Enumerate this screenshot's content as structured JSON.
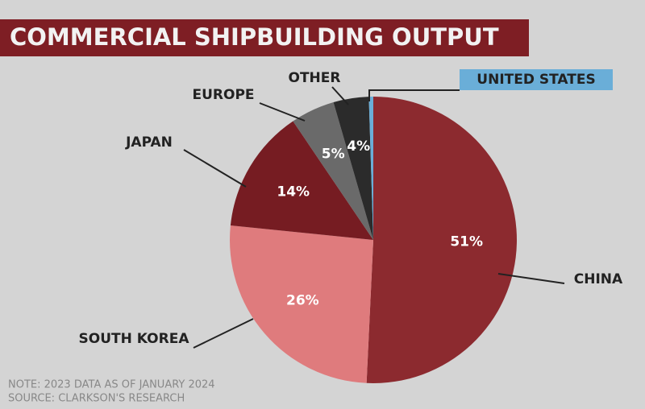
{
  "chart_data": {
    "type": "pie",
    "title": "COMMERCIAL SHIPBUILDING OUTPUT",
    "categories": [
      "CHINA",
      "SOUTH KOREA",
      "JAPAN",
      "EUROPE",
      "OTHER",
      "UNITED STATES"
    ],
    "values": [
      51,
      26,
      14,
      5,
      4,
      0.5
    ],
    "value_labels": [
      "51%",
      "26%",
      "14%",
      "5%",
      "4%",
      null
    ],
    "colors": [
      "#8c2a2f",
      "#df7b7d",
      "#761c22",
      "#6a6a6a",
      "#2b2b2b",
      "#6aaed8"
    ],
    "notes": [
      "NOTE: 2023 DATA AS OF JANUARY 2024",
      "SOURCE: CLARKSON'S RESEARCH"
    ]
  }
}
